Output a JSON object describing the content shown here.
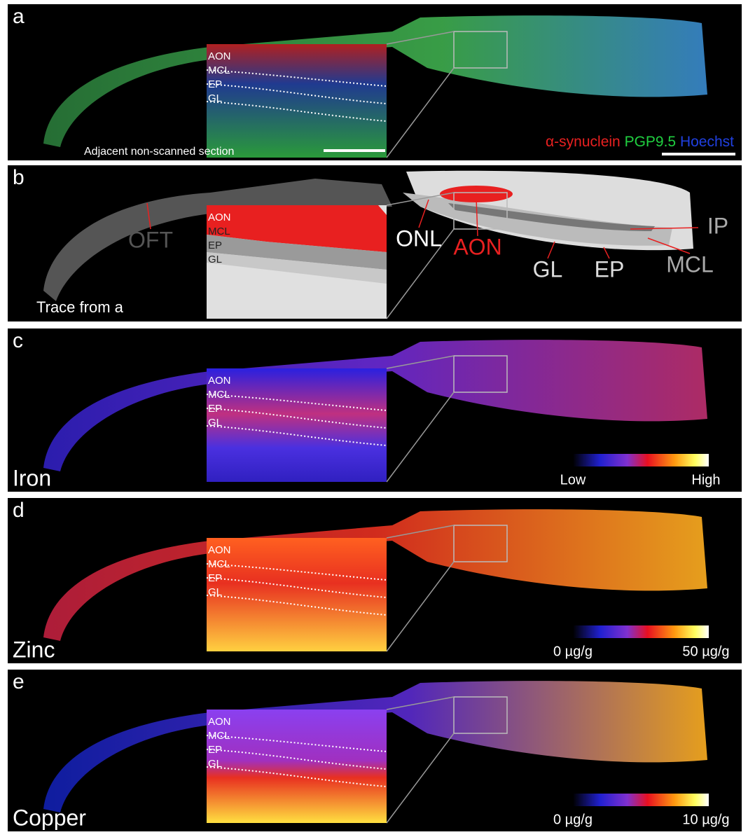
{
  "panels": [
    {
      "letter": "a",
      "inset_labels": [
        "AON",
        "MCL",
        "EP",
        "GL"
      ],
      "note": "Adjacent non-scanned section",
      "legend": [
        "α-synuclein",
        "PGP9.5",
        "Hoechst"
      ]
    },
    {
      "letter": "b",
      "inset_labels": [
        "AON",
        "MCL",
        "EP",
        "GL"
      ],
      "note": "Trace from a",
      "regions": [
        "OFT",
        "ONL",
        "AON",
        "GL",
        "EP",
        "MCL",
        "IP"
      ]
    },
    {
      "letter": "c",
      "element": "Iron",
      "inset_labels": [
        "AON",
        "MCL",
        "EP",
        "GL"
      ],
      "scale": [
        "Low",
        "High"
      ]
    },
    {
      "letter": "d",
      "element": "Zinc",
      "inset_labels": [
        "AON",
        "MCL",
        "EP",
        "GL"
      ],
      "scale": [
        "0 µg/g",
        "50 µg/g"
      ]
    },
    {
      "letter": "e",
      "element": "Copper",
      "inset_labels": [
        "AON",
        "MCL",
        "EP",
        "GL"
      ],
      "scale": [
        "0 µg/g",
        "10 µg/g"
      ]
    }
  ]
}
